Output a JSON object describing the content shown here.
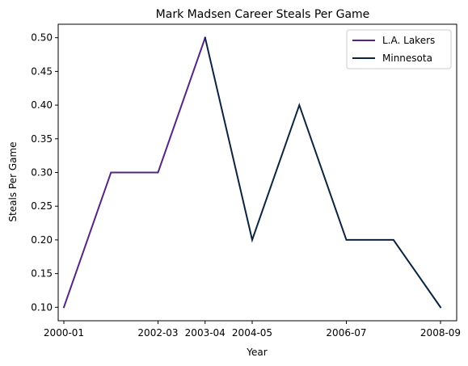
{
  "chart_data": {
    "type": "line",
    "title": "Mark Madsen Career Steals Per Game",
    "xlabel": "Year",
    "ylabel": "Steals Per Game",
    "x": [
      "2000-01",
      "2001-02",
      "2002-03",
      "2003-04",
      "2004-05",
      "2005-06",
      "2006-07",
      "2007-08",
      "2008-09"
    ],
    "x_ticks": [
      "2000-01",
      "2002-03",
      "2003-04",
      "2004-05",
      "2006-07",
      "2008-09"
    ],
    "ylim": [
      0.08,
      0.52
    ],
    "y_ticks": [
      "0.10",
      "0.15",
      "0.20",
      "0.25",
      "0.30",
      "0.35",
      "0.40",
      "0.45",
      "0.50"
    ],
    "grid": false,
    "legend_position": "top-right",
    "series": [
      {
        "name": "L.A. Lakers",
        "color": "#552583",
        "values": [
          0.1,
          0.3,
          0.3,
          0.5,
          null,
          null,
          null,
          null,
          null
        ]
      },
      {
        "name": "Minnesota",
        "color": "#0c2340",
        "values": [
          null,
          null,
          null,
          0.5,
          0.2,
          0.4,
          0.2,
          0.2,
          0.1
        ]
      }
    ]
  }
}
